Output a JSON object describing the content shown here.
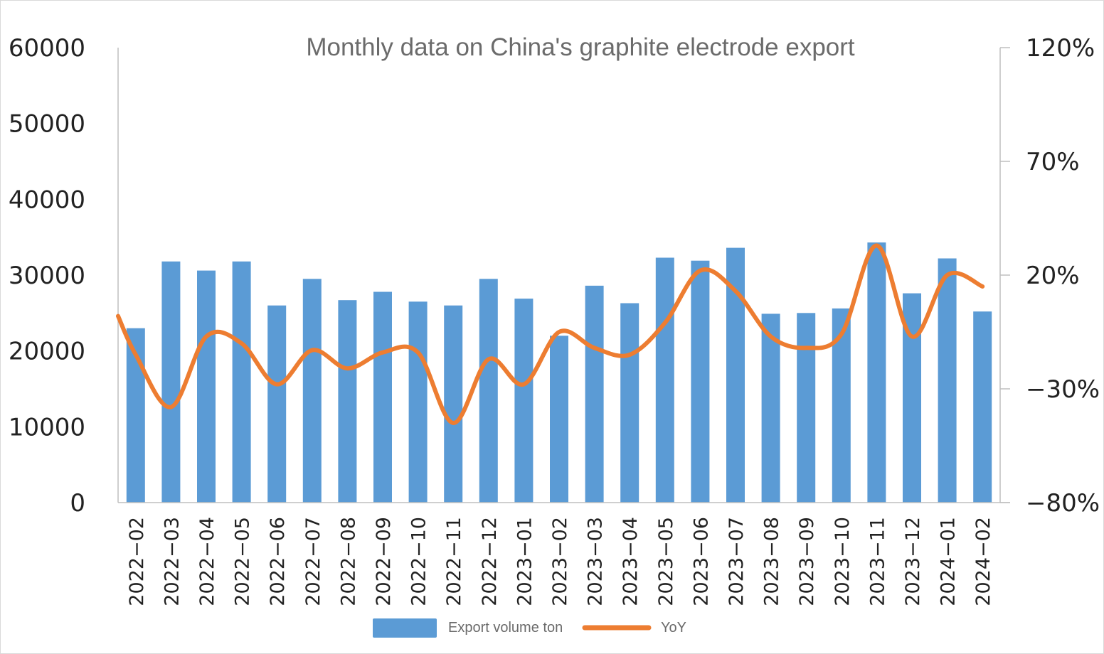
{
  "chart_data": {
    "type": "bar",
    "title": "Monthly data on China's graphite electrode export",
    "categories": [
      "2022−02",
      "2022−03",
      "2022−04",
      "2022−05",
      "2022−06",
      "2022−07",
      "2022−08",
      "2022−09",
      "2022−10",
      "2022−11",
      "2022−12",
      "2023−01",
      "2023−02",
      "2023−03",
      "2023−04",
      "2023−05",
      "2023−06",
      "2023−07",
      "2023−08",
      "2023−09",
      "2023−10",
      "2023−11",
      "2023−12",
      "2024−01",
      "2024−02"
    ],
    "series": [
      {
        "name": "Export volume ton",
        "type": "bar",
        "axis": "left",
        "color": "#5b9bd5",
        "values": [
          23000,
          31800,
          30600,
          31800,
          26000,
          29500,
          26700,
          27800,
          26500,
          26000,
          29500,
          26900,
          22000,
          28600,
          26300,
          32300,
          31900,
          33600,
          24900,
          25000,
          25600,
          34300,
          27600,
          32200,
          25200
        ]
      },
      {
        "name": "YoY",
        "type": "line",
        "axis": "right",
        "color": "#ed7d31",
        "values": [
          -0.15,
          -0.38,
          -0.07,
          -0.1,
          -0.28,
          -0.13,
          -0.21,
          -0.14,
          -0.14,
          -0.45,
          -0.17,
          -0.28,
          -0.05,
          -0.12,
          -0.15,
          -0.01,
          0.22,
          0.13,
          -0.07,
          -0.12,
          -0.06,
          0.33,
          -0.07,
          0.2,
          0.15
        ]
      }
    ],
    "y_left": {
      "min": 0,
      "max": 60000,
      "ticks": [
        "0",
        "10000",
        "20000",
        "30000",
        "40000",
        "50000",
        "60000"
      ]
    },
    "y_right": {
      "min": -0.8,
      "max": 1.2,
      "ticks": [
        "−80%",
        "−30%",
        "20%",
        "70%",
        "120%"
      ]
    },
    "grid": false,
    "legend_position": "bottom"
  }
}
